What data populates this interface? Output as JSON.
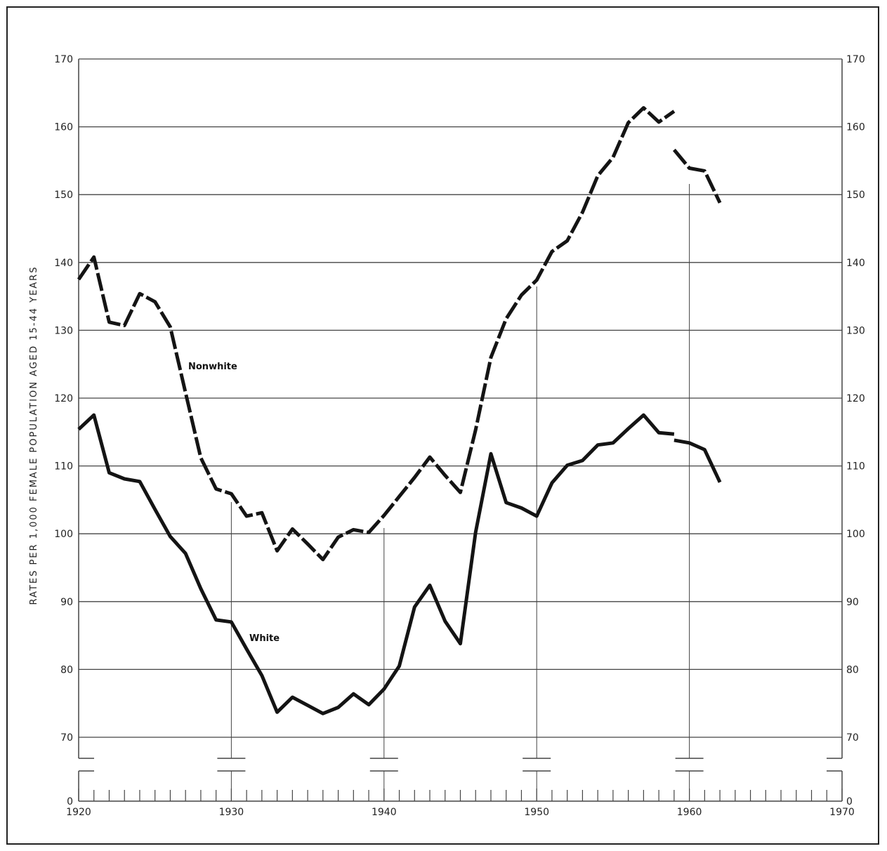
{
  "chart_data": {
    "type": "line",
    "title": "",
    "xlabel": "",
    "ylabel": "RATES PER 1,000 FEMALE POPULATION AGED 15-44 YEARS",
    "xlim": [
      1920,
      1970
    ],
    "ylim": [
      0,
      170
    ],
    "axis_break": "between 0 and 70",
    "grid": "horizontal lines every 10 units; vertical lines at decade marks",
    "x_ticks": [
      "1920",
      "1930",
      "1940",
      "1950",
      "1960",
      "1970"
    ],
    "y_ticks": [
      "0",
      "70",
      "80",
      "90",
      "100",
      "110",
      "120",
      "130",
      "140",
      "150",
      "160",
      "170"
    ],
    "series": [
      {
        "name": "Nonwhite",
        "style": "dashed",
        "segments": [
          {
            "x": [
              1920,
              1921,
              1922,
              1923,
              1924,
              1925,
              1926,
              1927,
              1928,
              1929,
              1930,
              1931,
              1932,
              1933,
              1934,
              1935,
              1936,
              1937,
              1938,
              1939,
              1940,
              1941,
              1942,
              1943,
              1944,
              1945,
              1946,
              1947,
              1948,
              1949,
              1950,
              1951,
              1952,
              1953,
              1954,
              1955,
              1956,
              1957,
              1958,
              1959
            ],
            "y": [
              137.5,
              140.8,
              131.2,
              130.7,
              135.4,
              134.2,
              130.5,
              120.8,
              111.2,
              106.6,
              105.9,
              102.6,
              103.1,
              97.5,
              100.7,
              98.5,
              96.2,
              99.5,
              100.6,
              100.2,
              102.7,
              105.5,
              108.3,
              111.3,
              108.6,
              106.1,
              115.3,
              126.0,
              131.7,
              135.2,
              137.4,
              141.6,
              143.2,
              147.4,
              152.8,
              155.5,
              160.6,
              162.8,
              160.7,
              162.3
            ]
          },
          {
            "x": [
              1959,
              1960,
              1961,
              1962
            ],
            "y": [
              156.6,
              153.9,
              153.5,
              148.8
            ]
          }
        ]
      },
      {
        "name": "White",
        "style": "solid",
        "segments": [
          {
            "x": [
              1920,
              1921,
              1922,
              1923,
              1924,
              1925,
              1926,
              1927,
              1928,
              1929,
              1930,
              1931,
              1932,
              1933,
              1934,
              1935,
              1936,
              1937,
              1938,
              1939,
              1940,
              1941,
              1942,
              1943,
              1944,
              1945,
              1946,
              1947,
              1948,
              1949,
              1950,
              1951,
              1952,
              1953,
              1954,
              1955,
              1956,
              1957,
              1958,
              1959
            ],
            "y": [
              115.4,
              117.5,
              109.0,
              108.1,
              107.7,
              103.6,
              99.6,
              97.1,
              91.9,
              87.3,
              87.0,
              83.0,
              79.1,
              73.7,
              75.9,
              74.7,
              73.5,
              74.4,
              76.4,
              74.8,
              77.1,
              80.5,
              89.2,
              92.4,
              87.1,
              83.8,
              100.2,
              111.8,
              104.6,
              103.8,
              102.6,
              107.5,
              110.1,
              110.8,
              113.1,
              113.4,
              115.5,
              117.5,
              114.9,
              114.7
            ]
          },
          {
            "x": [
              1959,
              1960,
              1961,
              1962
            ],
            "y": [
              113.8,
              113.4,
              112.4,
              107.6
            ]
          }
        ]
      }
    ],
    "annotations": [
      "Nonwhite",
      "White"
    ]
  },
  "colors": {
    "line": "#141414",
    "grid": "#444444",
    "background": "#ffffff"
  }
}
